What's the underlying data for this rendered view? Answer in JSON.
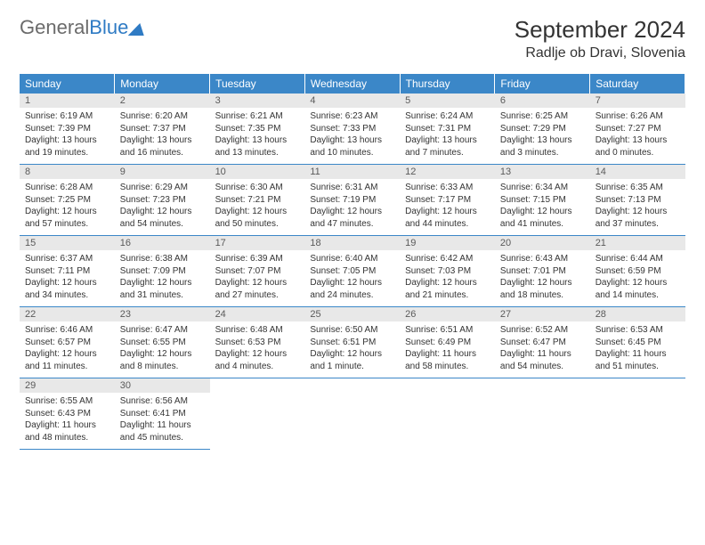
{
  "logo": {
    "word1": "General",
    "word2": "Blue"
  },
  "title": "September 2024",
  "location": "Radlje ob Dravi, Slovenia",
  "colors": {
    "header_bg": "#3b87c8",
    "header_text": "#ffffff",
    "daynum_bg": "#e8e8e8",
    "daynum_text": "#5a5a5a",
    "body_bg": "#ffffff",
    "cell_border": "#3b87c8",
    "logo_grey": "#6b6b6b",
    "logo_blue": "#2f7bc4"
  },
  "typography": {
    "title_fontsize": 26,
    "location_fontsize": 16,
    "header_fontsize": 12,
    "daynum_fontsize": 11,
    "body_fontsize": 10
  },
  "weekdays": [
    "Sunday",
    "Monday",
    "Tuesday",
    "Wednesday",
    "Thursday",
    "Friday",
    "Saturday"
  ],
  "weeks": [
    [
      {
        "num": "1",
        "sunrise": "Sunrise: 6:19 AM",
        "sunset": "Sunset: 7:39 PM",
        "daylight": "Daylight: 13 hours and 19 minutes."
      },
      {
        "num": "2",
        "sunrise": "Sunrise: 6:20 AM",
        "sunset": "Sunset: 7:37 PM",
        "daylight": "Daylight: 13 hours and 16 minutes."
      },
      {
        "num": "3",
        "sunrise": "Sunrise: 6:21 AM",
        "sunset": "Sunset: 7:35 PM",
        "daylight": "Daylight: 13 hours and 13 minutes."
      },
      {
        "num": "4",
        "sunrise": "Sunrise: 6:23 AM",
        "sunset": "Sunset: 7:33 PM",
        "daylight": "Daylight: 13 hours and 10 minutes."
      },
      {
        "num": "5",
        "sunrise": "Sunrise: 6:24 AM",
        "sunset": "Sunset: 7:31 PM",
        "daylight": "Daylight: 13 hours and 7 minutes."
      },
      {
        "num": "6",
        "sunrise": "Sunrise: 6:25 AM",
        "sunset": "Sunset: 7:29 PM",
        "daylight": "Daylight: 13 hours and 3 minutes."
      },
      {
        "num": "7",
        "sunrise": "Sunrise: 6:26 AM",
        "sunset": "Sunset: 7:27 PM",
        "daylight": "Daylight: 13 hours and 0 minutes."
      }
    ],
    [
      {
        "num": "8",
        "sunrise": "Sunrise: 6:28 AM",
        "sunset": "Sunset: 7:25 PM",
        "daylight": "Daylight: 12 hours and 57 minutes."
      },
      {
        "num": "9",
        "sunrise": "Sunrise: 6:29 AM",
        "sunset": "Sunset: 7:23 PM",
        "daylight": "Daylight: 12 hours and 54 minutes."
      },
      {
        "num": "10",
        "sunrise": "Sunrise: 6:30 AM",
        "sunset": "Sunset: 7:21 PM",
        "daylight": "Daylight: 12 hours and 50 minutes."
      },
      {
        "num": "11",
        "sunrise": "Sunrise: 6:31 AM",
        "sunset": "Sunset: 7:19 PM",
        "daylight": "Daylight: 12 hours and 47 minutes."
      },
      {
        "num": "12",
        "sunrise": "Sunrise: 6:33 AM",
        "sunset": "Sunset: 7:17 PM",
        "daylight": "Daylight: 12 hours and 44 minutes."
      },
      {
        "num": "13",
        "sunrise": "Sunrise: 6:34 AM",
        "sunset": "Sunset: 7:15 PM",
        "daylight": "Daylight: 12 hours and 41 minutes."
      },
      {
        "num": "14",
        "sunrise": "Sunrise: 6:35 AM",
        "sunset": "Sunset: 7:13 PM",
        "daylight": "Daylight: 12 hours and 37 minutes."
      }
    ],
    [
      {
        "num": "15",
        "sunrise": "Sunrise: 6:37 AM",
        "sunset": "Sunset: 7:11 PM",
        "daylight": "Daylight: 12 hours and 34 minutes."
      },
      {
        "num": "16",
        "sunrise": "Sunrise: 6:38 AM",
        "sunset": "Sunset: 7:09 PM",
        "daylight": "Daylight: 12 hours and 31 minutes."
      },
      {
        "num": "17",
        "sunrise": "Sunrise: 6:39 AM",
        "sunset": "Sunset: 7:07 PM",
        "daylight": "Daylight: 12 hours and 27 minutes."
      },
      {
        "num": "18",
        "sunrise": "Sunrise: 6:40 AM",
        "sunset": "Sunset: 7:05 PM",
        "daylight": "Daylight: 12 hours and 24 minutes."
      },
      {
        "num": "19",
        "sunrise": "Sunrise: 6:42 AM",
        "sunset": "Sunset: 7:03 PM",
        "daylight": "Daylight: 12 hours and 21 minutes."
      },
      {
        "num": "20",
        "sunrise": "Sunrise: 6:43 AM",
        "sunset": "Sunset: 7:01 PM",
        "daylight": "Daylight: 12 hours and 18 minutes."
      },
      {
        "num": "21",
        "sunrise": "Sunrise: 6:44 AM",
        "sunset": "Sunset: 6:59 PM",
        "daylight": "Daylight: 12 hours and 14 minutes."
      }
    ],
    [
      {
        "num": "22",
        "sunrise": "Sunrise: 6:46 AM",
        "sunset": "Sunset: 6:57 PM",
        "daylight": "Daylight: 12 hours and 11 minutes."
      },
      {
        "num": "23",
        "sunrise": "Sunrise: 6:47 AM",
        "sunset": "Sunset: 6:55 PM",
        "daylight": "Daylight: 12 hours and 8 minutes."
      },
      {
        "num": "24",
        "sunrise": "Sunrise: 6:48 AM",
        "sunset": "Sunset: 6:53 PM",
        "daylight": "Daylight: 12 hours and 4 minutes."
      },
      {
        "num": "25",
        "sunrise": "Sunrise: 6:50 AM",
        "sunset": "Sunset: 6:51 PM",
        "daylight": "Daylight: 12 hours and 1 minute."
      },
      {
        "num": "26",
        "sunrise": "Sunrise: 6:51 AM",
        "sunset": "Sunset: 6:49 PM",
        "daylight": "Daylight: 11 hours and 58 minutes."
      },
      {
        "num": "27",
        "sunrise": "Sunrise: 6:52 AM",
        "sunset": "Sunset: 6:47 PM",
        "daylight": "Daylight: 11 hours and 54 minutes."
      },
      {
        "num": "28",
        "sunrise": "Sunrise: 6:53 AM",
        "sunset": "Sunset: 6:45 PM",
        "daylight": "Daylight: 11 hours and 51 minutes."
      }
    ],
    [
      {
        "num": "29",
        "sunrise": "Sunrise: 6:55 AM",
        "sunset": "Sunset: 6:43 PM",
        "daylight": "Daylight: 11 hours and 48 minutes."
      },
      {
        "num": "30",
        "sunrise": "Sunrise: 6:56 AM",
        "sunset": "Sunset: 6:41 PM",
        "daylight": "Daylight: 11 hours and 45 minutes."
      },
      null,
      null,
      null,
      null,
      null
    ]
  ]
}
